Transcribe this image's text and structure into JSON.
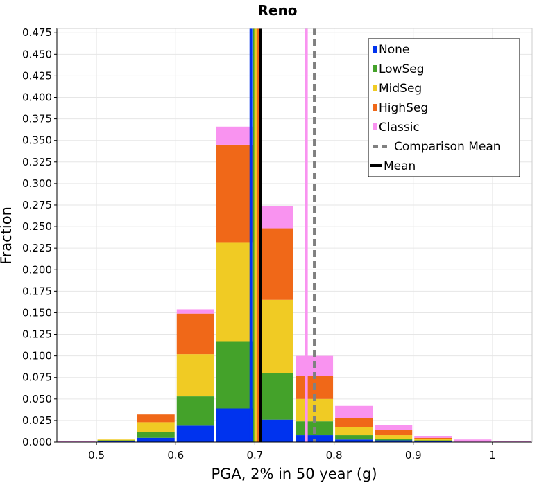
{
  "chart_data": {
    "type": "bar",
    "stacked": true,
    "title": "Reno",
    "xlabel": "PGA, 2% in 50 year (g)",
    "ylabel": "Fraction",
    "xlim": [
      0.45,
      1.05
    ],
    "ylim": [
      0,
      0.48
    ],
    "bin_width": 0.05,
    "grid": true,
    "legend_position": "top-right",
    "x_ticks": [
      "0.5",
      "0.6",
      "0.7",
      "0.8",
      "0.9",
      "1"
    ],
    "y_ticks": [
      "0.000",
      "0.025",
      "0.050",
      "0.075",
      "0.100",
      "0.125",
      "0.150",
      "0.175",
      "0.200",
      "0.225",
      "0.250",
      "0.275",
      "0.300",
      "0.325",
      "0.350",
      "0.375",
      "0.400",
      "0.425",
      "0.450",
      "0.475"
    ],
    "bins": [
      0.45,
      0.5,
      0.55,
      0.6,
      0.65,
      0.7,
      0.75,
      0.8,
      0.85,
      0.9,
      0.95,
      1.0
    ],
    "series": [
      {
        "name": "None",
        "color": "#0033ee",
        "values": [
          0.0,
          0.001,
          0.005,
          0.019,
          0.039,
          0.026,
          0.008,
          0.003,
          0.002,
          0.001,
          0.0,
          0.0
        ]
      },
      {
        "name": "LowSeg",
        "color": "#44a22a",
        "values": [
          0.0,
          0.001,
          0.007,
          0.034,
          0.078,
          0.054,
          0.016,
          0.005,
          0.002,
          0.001,
          0.0,
          0.0
        ]
      },
      {
        "name": "MidSeg",
        "color": "#f0cb24",
        "values": [
          0.0,
          0.001,
          0.011,
          0.049,
          0.115,
          0.085,
          0.026,
          0.009,
          0.004,
          0.002,
          0.0,
          0.0
        ]
      },
      {
        "name": "HighSeg",
        "color": "#f06818",
        "values": [
          0.0,
          0.0,
          0.009,
          0.047,
          0.113,
          0.083,
          0.027,
          0.011,
          0.006,
          0.001,
          0.0,
          0.0
        ]
      },
      {
        "name": "Classic",
        "color": "#f993f0",
        "values": [
          0.001,
          0.0,
          0.0,
          0.005,
          0.021,
          0.026,
          0.023,
          0.014,
          0.006,
          0.002,
          0.003,
          0.001
        ]
      }
    ],
    "mean_lines": [
      {
        "name": "None",
        "x": 0.695,
        "color": "#0033ee",
        "style": "solid"
      },
      {
        "name": "LowSeg",
        "x": 0.699,
        "color": "#44a22a",
        "style": "solid"
      },
      {
        "name": "MidSeg",
        "x": 0.701,
        "color": "#f0cb24",
        "style": "solid"
      },
      {
        "name": "HighSeg",
        "x": 0.704,
        "color": "#f06818",
        "style": "solid"
      },
      {
        "name": "Classic",
        "x": 0.765,
        "color": "#f993f0",
        "style": "solid"
      },
      {
        "name": "Comparison Mean",
        "x": 0.775,
        "color": "#808080",
        "style": "dashed"
      },
      {
        "name": "Mean",
        "x": 0.707,
        "color": "#000000",
        "style": "solid"
      }
    ],
    "legend": [
      {
        "label": "None",
        "color": "#0033ee",
        "marker": "square"
      },
      {
        "label": "LowSeg",
        "color": "#44a22a",
        "marker": "square"
      },
      {
        "label": "MidSeg",
        "color": "#f0cb24",
        "marker": "square"
      },
      {
        "label": "HighSeg",
        "color": "#f06818",
        "marker": "square"
      },
      {
        "label": "Classic",
        "color": "#f993f0",
        "marker": "square"
      },
      {
        "label": "Comparison Mean",
        "color": "#808080",
        "marker": "dashed-line"
      },
      {
        "label": "Mean",
        "color": "#000000",
        "marker": "solid-line"
      }
    ]
  }
}
